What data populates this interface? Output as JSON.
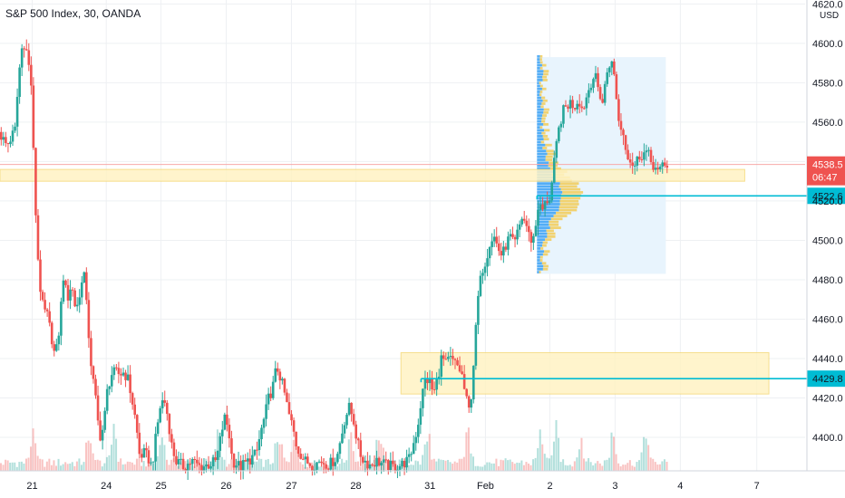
{
  "header": {
    "title": "S&P 500 Index, 30, OANDA"
  },
  "colors": {
    "up": "#26a69a",
    "down": "#ef5350",
    "zone_fill": "#fff3c4",
    "zone_stroke": "#f5d97a",
    "cyan": "#00bcd4",
    "profile_up": "#2196f3",
    "profile_down": "#f2c94c",
    "profile_box": "#e8f4fd",
    "price_line": "#f7a9a8",
    "axis_text": "#131722",
    "grid": "#eef0f3"
  },
  "chart_data": {
    "type": "candlestick",
    "title": "S&P 500 Index, 30, OANDA",
    "yunit": "USD",
    "ylim": [
      4383,
      4622
    ],
    "yticks": [
      4400.0,
      4420.0,
      4440.0,
      4460.0,
      4480.0,
      4500.0,
      4520.0,
      4540.0,
      4560.0,
      4580.0,
      4600.0,
      4620.0
    ],
    "xlabels": [
      {
        "label": "21",
        "pos": 0.04
      },
      {
        "label": "24",
        "pos": 0.132
      },
      {
        "label": "25",
        "pos": 0.2
      },
      {
        "label": "26",
        "pos": 0.281
      },
      {
        "label": "27",
        "pos": 0.362
      },
      {
        "label": "28",
        "pos": 0.442
      },
      {
        "label": "31",
        "pos": 0.534
      },
      {
        "label": "Feb",
        "pos": 0.603
      },
      {
        "label": "2",
        "pos": 0.683
      },
      {
        "label": "3",
        "pos": 0.764
      },
      {
        "label": "4",
        "pos": 0.845
      },
      {
        "label": "7",
        "pos": 0.94
      }
    ],
    "path": [
      [
        0.0,
        4555
      ],
      [
        0.01,
        4548
      ],
      [
        0.02,
        4556
      ],
      [
        0.025,
        4585
      ],
      [
        0.03,
        4602
      ],
      [
        0.035,
        4595
      ],
      [
        0.04,
        4580
      ],
      [
        0.045,
        4520
      ],
      [
        0.05,
        4480
      ],
      [
        0.055,
        4465
      ],
      [
        0.06,
        4462
      ],
      [
        0.065,
        4452
      ],
      [
        0.07,
        4440
      ],
      [
        0.075,
        4455
      ],
      [
        0.08,
        4482
      ],
      [
        0.085,
        4470
      ],
      [
        0.09,
        4478
      ],
      [
        0.095,
        4466
      ],
      [
        0.1,
        4470
      ],
      [
        0.105,
        4488
      ],
      [
        0.11,
        4460
      ],
      [
        0.115,
        4435
      ],
      [
        0.12,
        4420
      ],
      [
        0.125,
        4400
      ],
      [
        0.13,
        4405
      ],
      [
        0.135,
        4425
      ],
      [
        0.14,
        4432
      ],
      [
        0.145,
        4433
      ],
      [
        0.15,
        4432
      ],
      [
        0.155,
        4433
      ],
      [
        0.16,
        4430
      ],
      [
        0.165,
        4420
      ],
      [
        0.17,
        4408
      ],
      [
        0.175,
        4390
      ],
      [
        0.18,
        4392
      ],
      [
        0.185,
        4390
      ],
      [
        0.19,
        4385
      ],
      [
        0.195,
        4400
      ],
      [
        0.2,
        4415
      ],
      [
        0.205,
        4420
      ],
      [
        0.21,
        4410
      ],
      [
        0.215,
        4395
      ],
      [
        0.22,
        4388
      ],
      [
        0.23,
        4385
      ],
      [
        0.24,
        4388
      ],
      [
        0.25,
        4385
      ],
      [
        0.26,
        4386
      ],
      [
        0.27,
        4388
      ],
      [
        0.28,
        4410
      ],
      [
        0.285,
        4405
      ],
      [
        0.29,
        4388
      ],
      [
        0.3,
        4385
      ],
      [
        0.31,
        4388
      ],
      [
        0.32,
        4392
      ],
      [
        0.325,
        4402
      ],
      [
        0.33,
        4410
      ],
      [
        0.335,
        4420
      ],
      [
        0.34,
        4425
      ],
      [
        0.345,
        4436
      ],
      [
        0.35,
        4430
      ],
      [
        0.355,
        4422
      ],
      [
        0.36,
        4412
      ],
      [
        0.365,
        4405
      ],
      [
        0.37,
        4395
      ],
      [
        0.38,
        4388
      ],
      [
        0.39,
        4386
      ],
      [
        0.4,
        4388
      ],
      [
        0.41,
        4386
      ],
      [
        0.42,
        4390
      ],
      [
        0.43,
        4410
      ],
      [
        0.435,
        4415
      ],
      [
        0.44,
        4410
      ],
      [
        0.445,
        4398
      ],
      [
        0.45,
        4390
      ],
      [
        0.46,
        4386
      ],
      [
        0.47,
        4388
      ],
      [
        0.48,
        4386
      ],
      [
        0.49,
        4385
      ],
      [
        0.5,
        4386
      ],
      [
        0.51,
        4389
      ],
      [
        0.52,
        4405
      ],
      [
        0.525,
        4420
      ],
      [
        0.53,
        4430
      ],
      [
        0.535,
        4428
      ],
      [
        0.54,
        4422
      ],
      [
        0.545,
        4430
      ],
      [
        0.55,
        4441
      ],
      [
        0.555,
        4437
      ],
      [
        0.56,
        4440
      ],
      [
        0.565,
        4438
      ],
      [
        0.57,
        4436
      ],
      [
        0.575,
        4432
      ],
      [
        0.58,
        4420
      ],
      [
        0.585,
        4412
      ],
      [
        0.59,
        4440
      ],
      [
        0.595,
        4470
      ],
      [
        0.6,
        4485
      ],
      [
        0.605,
        4490
      ],
      [
        0.61,
        4500
      ],
      [
        0.615,
        4502
      ],
      [
        0.62,
        4496
      ],
      [
        0.625,
        4492
      ],
      [
        0.63,
        4498
      ],
      [
        0.635,
        4502
      ],
      [
        0.64,
        4497
      ],
      [
        0.645,
        4505
      ],
      [
        0.65,
        4512
      ],
      [
        0.655,
        4508
      ],
      [
        0.66,
        4500
      ],
      [
        0.665,
        4502
      ],
      [
        0.67,
        4518
      ],
      [
        0.675,
        4515
      ],
      [
        0.68,
        4520
      ],
      [
        0.685,
        4522
      ],
      [
        0.69,
        4540
      ],
      [
        0.695,
        4555
      ],
      [
        0.7,
        4565
      ],
      [
        0.705,
        4568
      ],
      [
        0.71,
        4570
      ],
      [
        0.715,
        4568
      ],
      [
        0.72,
        4572
      ],
      [
        0.725,
        4566
      ],
      [
        0.73,
        4573
      ],
      [
        0.735,
        4580
      ],
      [
        0.74,
        4584
      ],
      [
        0.745,
        4576
      ],
      [
        0.75,
        4570
      ],
      [
        0.755,
        4585
      ],
      [
        0.76,
        4592
      ],
      [
        0.765,
        4582
      ],
      [
        0.77,
        4560
      ],
      [
        0.775,
        4555
      ],
      [
        0.78,
        4545
      ],
      [
        0.785,
        4540
      ],
      [
        0.79,
        4538
      ],
      [
        0.795,
        4543
      ],
      [
        0.8,
        4544
      ],
      [
        0.805,
        4545
      ],
      [
        0.81,
        4540
      ],
      [
        0.815,
        4537
      ],
      [
        0.82,
        4533
      ],
      [
        0.825,
        4540
      ],
      [
        0.83,
        4538
      ]
    ],
    "volume_peaks": [
      0.04,
      0.11,
      0.14,
      0.2,
      0.27,
      0.345,
      0.365,
      0.435,
      0.47,
      0.53,
      0.58,
      0.67,
      0.69,
      0.72,
      0.76,
      0.8
    ],
    "zones": [
      {
        "y1": 4536,
        "y2": 4530,
        "x1": 0.0,
        "x2": 0.925
      },
      {
        "y1": 4443,
        "y2": 4422,
        "x1": 0.498,
        "x2": 0.955
      }
    ],
    "levels": [
      {
        "value": 4522.6,
        "label": "4522.6",
        "x1": 0.667
      },
      {
        "value": 4429.8,
        "label": "4429.8",
        "x1": 0.523
      }
    ],
    "current": {
      "value": 4538.5,
      "label": "4538.5",
      "countdown": "06:47"
    },
    "volume_profile": {
      "x1": 0.667,
      "x2": 0.827,
      "y_top": 4593,
      "y_bottom": 4483,
      "poc": 4522
    }
  }
}
